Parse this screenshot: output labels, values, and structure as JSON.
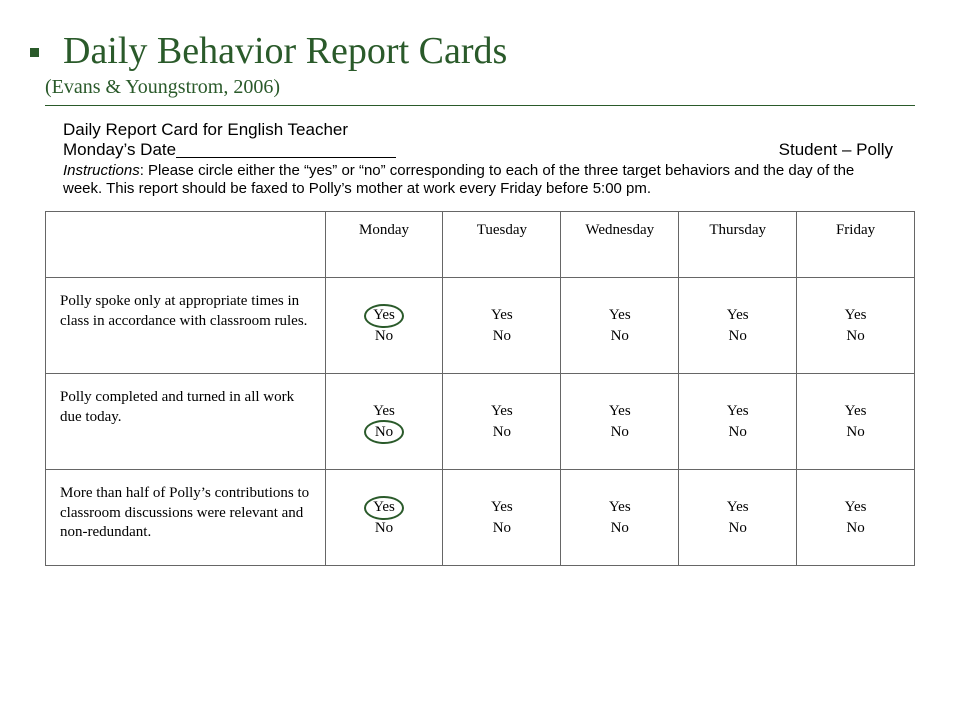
{
  "title": "Daily Behavior Report Cards",
  "subtitle": "(Evans & Youngstrom, 2006)",
  "subject": "Daily Report Card for English Teacher",
  "dateline": {
    "label": "Monday’s Date ",
    "student": "Student – Polly"
  },
  "instructions": {
    "lead": "Instructions",
    "text": ":  Please circle either the “yes” or “no” corresponding to each of the three target behaviors and the day of the week. This report should be faxed to Polly’s mother at work every Friday before 5:00 pm."
  },
  "days": [
    "Monday",
    "Tuesday",
    "Wednesday",
    "Thursday",
    "Friday"
  ],
  "yes": "Yes",
  "no": "No",
  "behaviors": [
    "Polly spoke only at appropriate times in class in accordance with classroom rules.",
    "Polly completed and turned in all work due today.",
    "More than half of Polly’s contributions to classroom discussions were relevant and non-redundant."
  ],
  "circled": [
    {
      "row": 0,
      "col": 0,
      "choice": "yes"
    },
    {
      "row": 1,
      "col": 0,
      "choice": "no"
    },
    {
      "row": 2,
      "col": 0,
      "choice": "yes"
    }
  ],
  "style": {
    "title_color": "#2a5a2a",
    "circle_color": "#2a5a2a",
    "border_color": "#666666",
    "background": "#ffffff",
    "title_fontsize": 38,
    "subtitle_fontsize": 20,
    "body_fontsize": 15
  }
}
